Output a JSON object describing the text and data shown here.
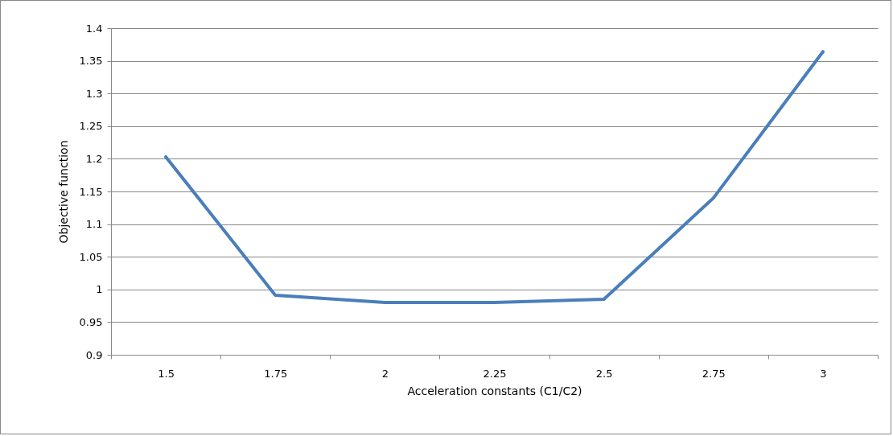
{
  "chart_data": {
    "type": "line",
    "xlabel": "Acceleration constants  (C1/C2)",
    "ylabel": "Objective function",
    "categories": [
      "1.5",
      "1.75",
      "2",
      "2.25",
      "2.5",
      "2.75",
      "3"
    ],
    "series": [
      {
        "color": "#4a7ebb",
        "values": [
          1.203,
          0.991,
          0.98,
          0.98,
          0.985,
          1.14,
          1.364
        ]
      }
    ],
    "ylim": [
      0.9,
      1.4
    ],
    "yticks": [
      0.9,
      0.95,
      1,
      1.05,
      1.1,
      1.15,
      1.2,
      1.25,
      1.3,
      1.35,
      1.4
    ],
    "grid": "y",
    "marker": "none",
    "line_style": "solid"
  }
}
